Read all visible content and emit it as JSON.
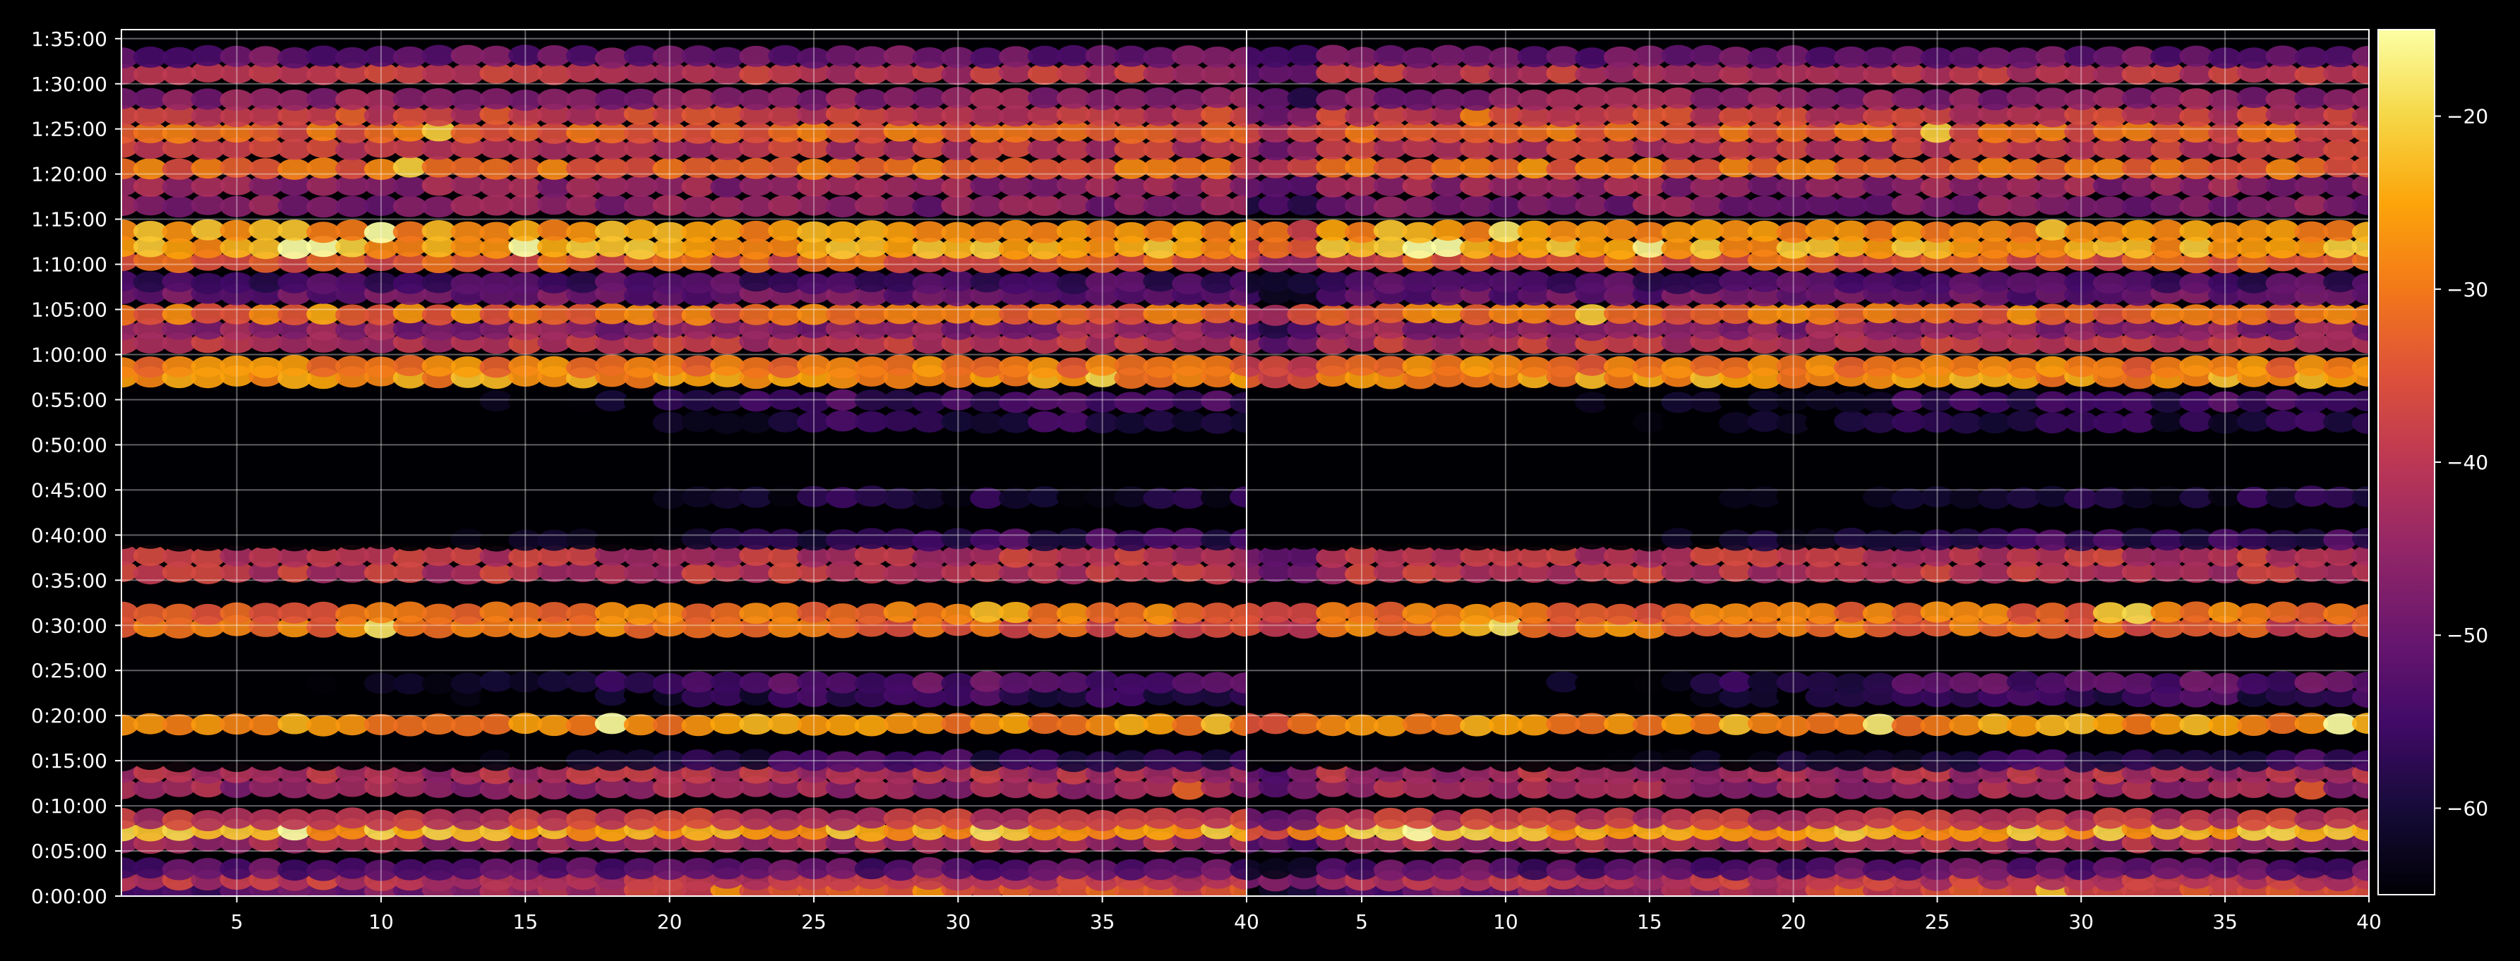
{
  "chart_data": {
    "type": "heatmap",
    "title": "",
    "colormap": "inferno",
    "background": "#000000",
    "grid": true,
    "panels": [
      {
        "name": "left",
        "x_range": [
          1,
          40
        ],
        "y_range_seconds": [
          0,
          5760
        ],
        "x_ticks": [
          "5",
          "10",
          "15",
          "20",
          "25",
          "30",
          "35",
          "40"
        ],
        "y_ticks": [
          "0:00:00",
          "0:05:00",
          "0:10:00",
          "0:15:00",
          "0:20:00",
          "0:25:00",
          "0:30:00",
          "0:35:00",
          "0:40:00",
          "0:45:00",
          "0:50:00",
          "0:55:00",
          "1:00:00",
          "1:05:00",
          "1:10:00",
          "1:15:00",
          "1:20:00",
          "1:25:00",
          "1:30:00",
          "1:35:00"
        ]
      },
      {
        "name": "right",
        "x_range": [
          1,
          40
        ],
        "y_range_seconds": [
          0,
          5760
        ],
        "x_ticks": [
          "5",
          "10",
          "15",
          "20",
          "25",
          "30",
          "35",
          "40"
        ]
      }
    ],
    "colorbar": {
      "range": [
        -65,
        -15
      ],
      "ticks": [
        "−20",
        "−30",
        "−40",
        "−50",
        "−60"
      ],
      "tick_values": [
        -20,
        -30,
        -40,
        -50,
        -60
      ]
    },
    "bands": [
      {
        "y": "0:00:40",
        "level": -34,
        "hot": [
          22,
          29
        ],
        "decay": "late"
      },
      {
        "y": "0:01:50",
        "level": -40
      },
      {
        "y": "0:03:00",
        "level": -52
      },
      {
        "y": "0:06:00",
        "level": -43
      },
      {
        "y": "0:07:20",
        "level": -24,
        "hot": [
          7,
          31
        ]
      },
      {
        "y": "0:08:30",
        "level": -40
      },
      {
        "y": "0:12:00",
        "level": -44,
        "hot": [
          38
        ]
      },
      {
        "y": "0:13:40",
        "level": -42
      },
      {
        "y": "0:15:00",
        "level": -56,
        "decay": "late"
      },
      {
        "y": "0:19:00",
        "level": -27,
        "hot": [
          18,
          23,
          39
        ]
      },
      {
        "y": "0:22:10",
        "level": -56,
        "decay": "late"
      },
      {
        "y": "0:23:40",
        "level": -52,
        "decay": "late"
      },
      {
        "y": "0:29:50",
        "level": -30,
        "hot": [
          9,
          10
        ],
        "decay": "early"
      },
      {
        "y": "0:31:20",
        "level": -31,
        "hot": [
          31,
          32
        ]
      },
      {
        "y": "0:35:50",
        "level": -40
      },
      {
        "y": "0:37:40",
        "level": -40,
        "hot": [
          36
        ]
      },
      {
        "y": "0:39:30",
        "level": -56,
        "decay": "late"
      },
      {
        "y": "0:44:10",
        "level": -60,
        "decay": "late"
      },
      {
        "y": "0:52:30",
        "level": -58,
        "decay": "late"
      },
      {
        "y": "0:54:50",
        "level": -55,
        "decay": "late"
      },
      {
        "y": "0:57:30",
        "level": -27,
        "hot": [
          13,
          17,
          35
        ]
      },
      {
        "y": "0:58:40",
        "level": -30
      },
      {
        "y": "1:01:20",
        "level": -40
      },
      {
        "y": "1:02:50",
        "level": -46
      },
      {
        "y": "1:04:30",
        "level": -31,
        "hot": [
          8,
          13
        ]
      },
      {
        "y": "1:06:40",
        "level": -50
      },
      {
        "y": "1:08:00",
        "level": -54
      },
      {
        "y": "1:10:20",
        "level": -34
      },
      {
        "y": "1:11:50",
        "level": -25,
        "hot": [
          7,
          8,
          15
        ]
      },
      {
        "y": "1:13:40",
        "level": -26,
        "hot": [
          10
        ]
      },
      {
        "y": "1:16:30",
        "level": -47
      },
      {
        "y": "1:18:40",
        "level": -45
      },
      {
        "y": "1:20:40",
        "level": -32,
        "hot": [
          11
        ]
      },
      {
        "y": "1:22:50",
        "level": -40
      },
      {
        "y": "1:24:40",
        "level": -33,
        "hot": [
          12,
          25
        ]
      },
      {
        "y": "1:26:30",
        "level": -38,
        "hot": [
          9
        ]
      },
      {
        "y": "1:28:20",
        "level": -46
      },
      {
        "y": "1:31:10",
        "level": -40
      },
      {
        "y": "1:33:00",
        "level": -50
      }
    ]
  }
}
